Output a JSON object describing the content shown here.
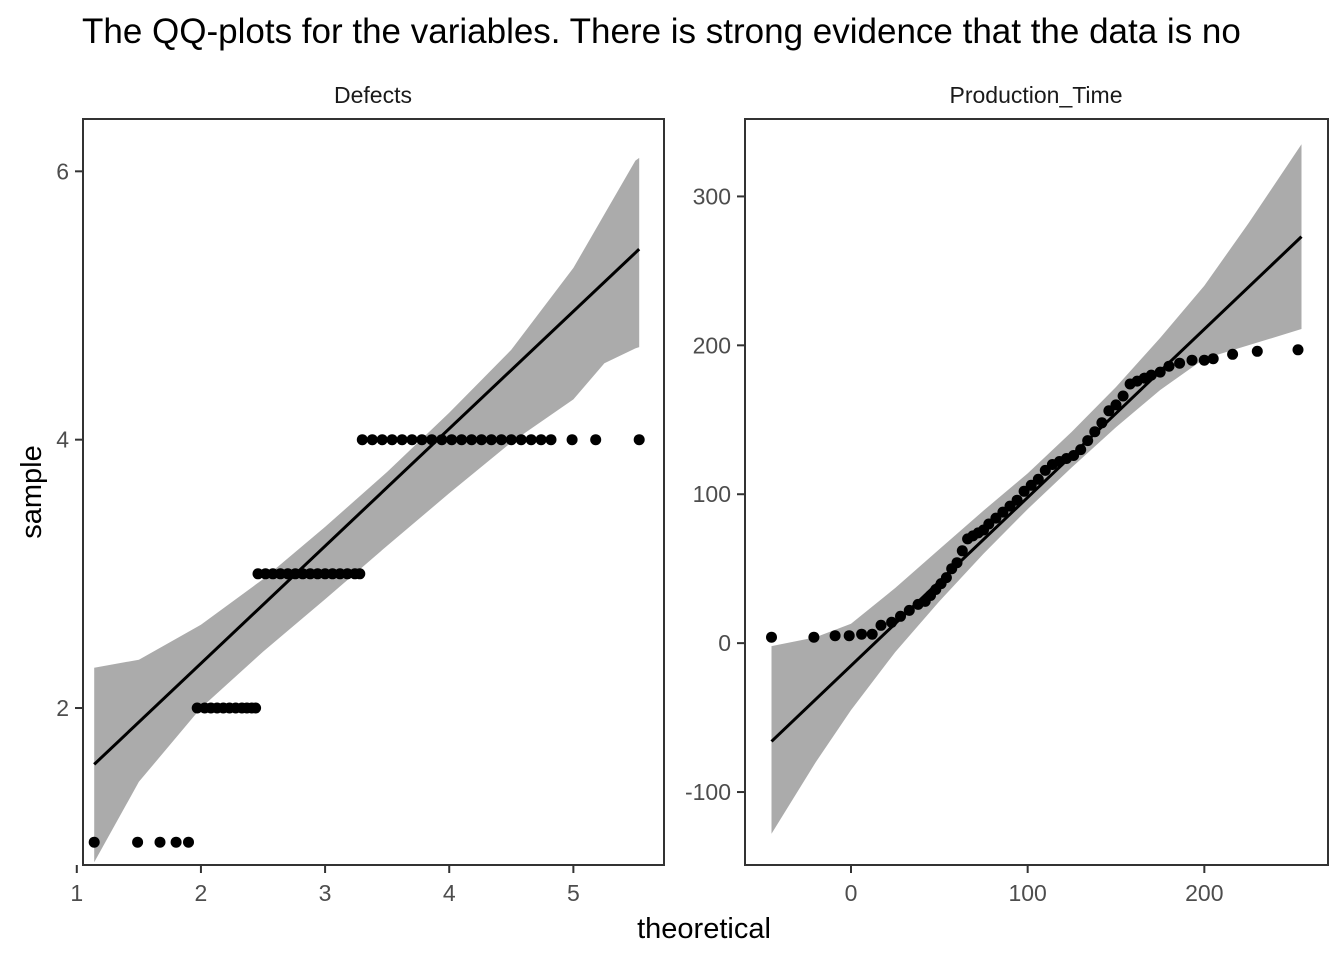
{
  "title": "The QQ-plots for the  variables. There is strong evidence that the data is no",
  "xlabel": "theoretical",
  "ylabel": "sample",
  "colors": {
    "band": "#ababab",
    "line": "#000000",
    "point": "#000000",
    "frame": "#333333"
  },
  "chart_data": [
    {
      "type": "scatter",
      "panel": "Defects",
      "xlim": [
        1.05,
        5.73
      ],
      "ylim": [
        0.83,
        6.39
      ],
      "x_ticks": [
        1,
        2,
        3,
        4,
        5
      ],
      "y_ticks": [
        2,
        4,
        6
      ],
      "x_tick_labels": [
        "1",
        "2",
        "3",
        "4",
        "5"
      ],
      "y_tick_labels": [
        "2",
        "4",
        "6"
      ],
      "reference_line": {
        "x": [
          1.14,
          5.53
        ],
        "y": [
          1.58,
          5.42
        ]
      },
      "confidence_band": {
        "x": [
          1.14,
          1.5,
          2.0,
          2.5,
          3.0,
          3.5,
          4.0,
          4.5,
          5.0,
          5.25,
          5.5,
          5.53
        ],
        "upper": [
          2.3,
          2.36,
          2.62,
          2.96,
          3.35,
          3.76,
          4.2,
          4.67,
          5.28,
          5.68,
          6.08,
          6.1
        ],
        "lower": [
          0.85,
          1.45,
          2.0,
          2.42,
          2.81,
          3.21,
          3.6,
          3.98,
          4.3,
          4.57,
          4.68,
          4.69
        ]
      },
      "points": {
        "x": [
          1.14,
          1.49,
          1.67,
          1.8,
          1.9,
          1.97,
          2.03,
          2.08,
          2.13,
          2.18,
          2.23,
          2.28,
          2.33,
          2.37,
          2.41,
          2.44,
          2.46,
          2.52,
          2.58,
          2.64,
          2.7,
          2.76,
          2.82,
          2.88,
          2.94,
          3.0,
          3.06,
          3.12,
          3.18,
          3.24,
          3.28,
          3.3,
          3.38,
          3.46,
          3.54,
          3.62,
          3.7,
          3.78,
          3.86,
          3.94,
          4.02,
          4.1,
          4.18,
          4.26,
          4.34,
          4.42,
          4.5,
          4.58,
          4.66,
          4.74,
          4.82,
          4.99,
          5.18,
          5.53
        ],
        "y": [
          1,
          1,
          1,
          1,
          1,
          2,
          2,
          2,
          2,
          2,
          2,
          2,
          2,
          2,
          2,
          2,
          3,
          3,
          3,
          3,
          3,
          3,
          3,
          3,
          3,
          3,
          3,
          3,
          3,
          3,
          3,
          4,
          4,
          4,
          4,
          4,
          4,
          4,
          4,
          4,
          4,
          4,
          4,
          4,
          4,
          4,
          4,
          4,
          4,
          4,
          4,
          4,
          4,
          4
        ]
      }
    },
    {
      "type": "scatter",
      "panel": "Production_Time",
      "xlim": [
        -60,
        270
      ],
      "ylim": [
        -149,
        352
      ],
      "x_ticks": [
        0,
        100,
        200
      ],
      "y_ticks": [
        -100,
        0,
        100,
        200,
        300
      ],
      "x_tick_labels": [
        "0",
        "100",
        "200"
      ],
      "y_tick_labels": [
        "-100",
        "0",
        "100",
        "200",
        "300"
      ],
      "reference_line": {
        "x": [
          -45,
          255
        ],
        "y": [
          -66,
          273
        ]
      },
      "confidence_band": {
        "x": [
          -45,
          -20,
          0,
          25,
          50,
          75,
          100,
          125,
          150,
          175,
          200,
          225,
          255
        ],
        "upper": [
          -2,
          4,
          13,
          37,
          63,
          89,
          114,
          142,
          172,
          205,
          240,
          282,
          335
        ],
        "lower": [
          -128,
          -80,
          -45,
          -6,
          28,
          60,
          90,
          118,
          145,
          170,
          191,
          200,
          211
        ]
      },
      "points": {
        "x": [
          -45,
          -21,
          -9,
          -1,
          6,
          12,
          17,
          23,
          28,
          33,
          38,
          42,
          45,
          48,
          51,
          54,
          57,
          60,
          63,
          66,
          69,
          72,
          75,
          78,
          82,
          86,
          90,
          94,
          98,
          102,
          106,
          110,
          114,
          118,
          122,
          126,
          130,
          134,
          138,
          142,
          146,
          150,
          154,
          158,
          162,
          166,
          170,
          175,
          180,
          186,
          193,
          200,
          205,
          216,
          230,
          253
        ],
        "y": [
          4,
          4,
          5,
          5,
          6,
          6,
          12,
          14,
          18,
          22,
          26,
          28,
          32,
          36,
          40,
          44,
          50,
          54,
          62,
          70,
          72,
          74,
          76,
          80,
          84,
          88,
          92,
          96,
          102,
          106,
          110,
          116,
          120,
          122,
          124,
          126,
          130,
          136,
          142,
          148,
          156,
          160,
          166,
          174,
          176,
          178,
          180,
          182,
          186,
          188,
          190,
          190,
          191,
          194,
          196,
          197
        ]
      }
    }
  ]
}
